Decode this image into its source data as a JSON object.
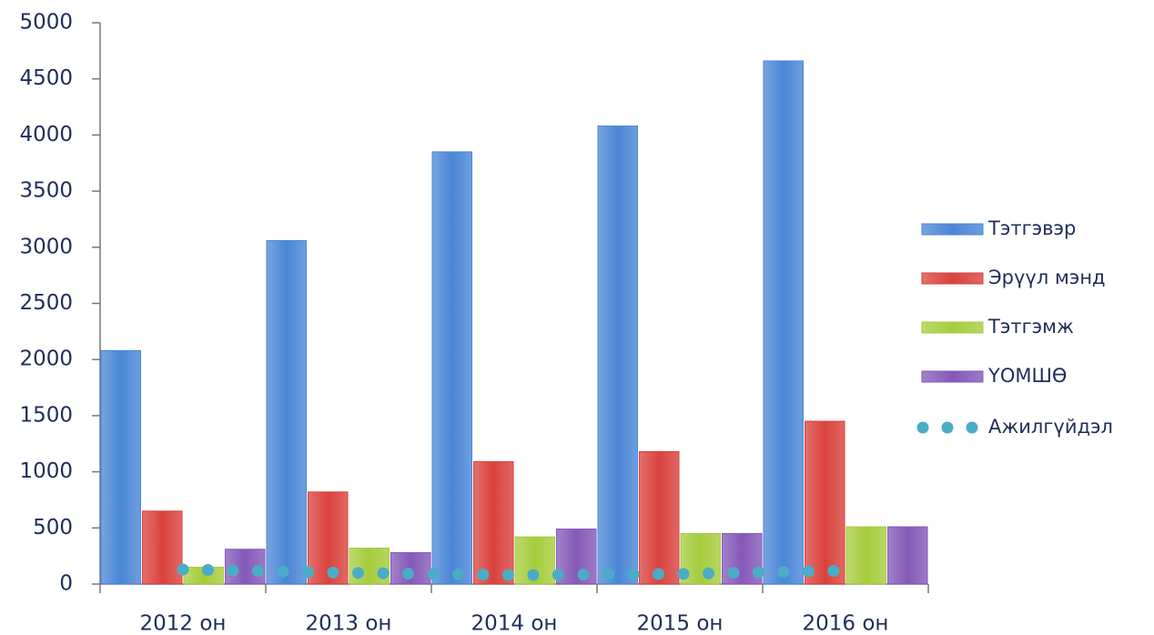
{
  "chart_data": {
    "type": "bar",
    "categories": [
      "2012 он",
      "2013 он",
      "2014 он",
      "2015 он",
      "2016 он"
    ],
    "series": [
      {
        "name": "Тэтгэвэр",
        "color": "#4a86d6",
        "values": [
          2080,
          3060,
          3850,
          4080,
          4660
        ]
      },
      {
        "name": "Эрүүл мэнд",
        "color": "#d9423d",
        "values": [
          650,
          820,
          1090,
          1180,
          1450
        ]
      },
      {
        "name": "Тэтгэмж",
        "color": "#a6cc3c",
        "values": [
          150,
          320,
          420,
          450,
          510
        ]
      },
      {
        "name": "ҮОМШӨ",
        "color": "#8558b8",
        "values": [
          310,
          280,
          490,
          450,
          510
        ]
      },
      {
        "name": "Ажилгүйдэл",
        "color": "#4bacc6",
        "type": "line",
        "values": [
          130,
          100,
          80,
          90,
          120
        ]
      }
    ],
    "ylim": [
      0,
      5000
    ],
    "yticks": [
      0,
      500,
      1000,
      1500,
      2000,
      2500,
      3000,
      3500,
      4000,
      4500,
      5000
    ],
    "legend": "right"
  }
}
